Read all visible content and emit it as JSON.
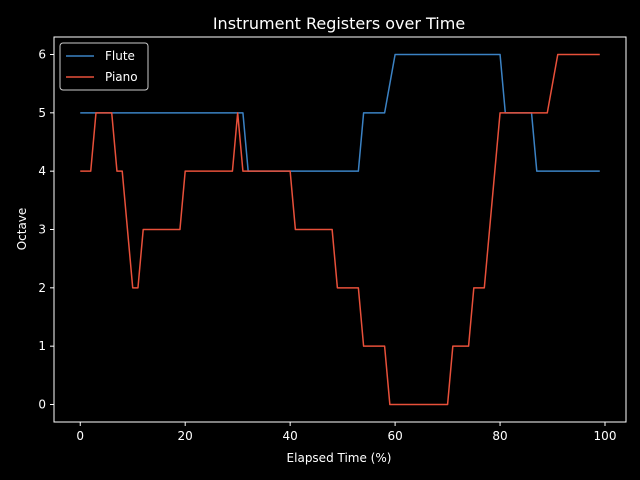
{
  "chart_data": {
    "type": "line",
    "title": "Instrument Registers over Time",
    "xlabel": "Elapsed Time (%)",
    "ylabel": "Octave",
    "xlim": [
      -5,
      104
    ],
    "ylim": [
      -0.3,
      6.3
    ],
    "xticks": [
      0,
      20,
      40,
      60,
      80,
      100
    ],
    "yticks": [
      0,
      1,
      2,
      3,
      4,
      5,
      6
    ],
    "grid": false,
    "legend_position": "upper-left",
    "background": "#000000",
    "foreground": "#ffffff",
    "series": [
      {
        "name": "Flute",
        "color": "#3b82c4",
        "points": [
          [
            0,
            5
          ],
          [
            31,
            5
          ],
          [
            32,
            4
          ],
          [
            53,
            4
          ],
          [
            54,
            5
          ],
          [
            58,
            5
          ],
          [
            60,
            6
          ],
          [
            80,
            6
          ],
          [
            81,
            5
          ],
          [
            86,
            5
          ],
          [
            87,
            4
          ],
          [
            99,
            4
          ]
        ]
      },
      {
        "name": "Piano",
        "color": "#e8503a",
        "points": [
          [
            0,
            4
          ],
          [
            2,
            4
          ],
          [
            3,
            5
          ],
          [
            6,
            5
          ],
          [
            7,
            4
          ],
          [
            8,
            4
          ],
          [
            10,
            2
          ],
          [
            11,
            2
          ],
          [
            12,
            3
          ],
          [
            19,
            3
          ],
          [
            20,
            4
          ],
          [
            29,
            4
          ],
          [
            30,
            5
          ],
          [
            31,
            4
          ],
          [
            40,
            4
          ],
          [
            41,
            3
          ],
          [
            48,
            3
          ],
          [
            49,
            2
          ],
          [
            53,
            2
          ],
          [
            54,
            1
          ],
          [
            58,
            1
          ],
          [
            59,
            0
          ],
          [
            70,
            0
          ],
          [
            71,
            1
          ],
          [
            74,
            1
          ],
          [
            75,
            2
          ],
          [
            77,
            2
          ],
          [
            80,
            5
          ],
          [
            89,
            5
          ],
          [
            91,
            6
          ],
          [
            99,
            6
          ]
        ]
      }
    ]
  }
}
